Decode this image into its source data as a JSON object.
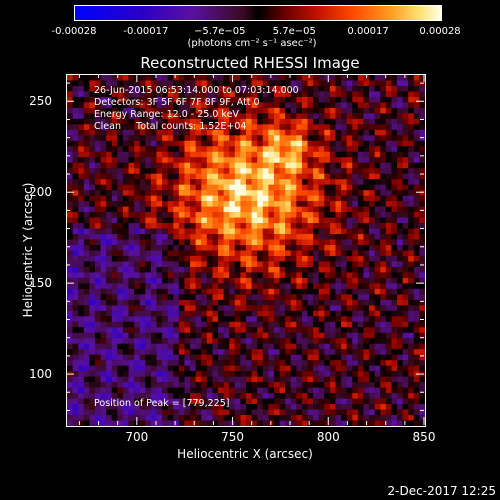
{
  "chart_data": {
    "type": "heatmap",
    "title": "Reconstructed RHESSI Image",
    "xlabel": "Heliocentric X (arcsec)",
    "ylabel": "Heliocentric Y (arcsec)",
    "xlim": [
      663,
      850
    ],
    "ylim": [
      72,
      265
    ],
    "xticks": [
      700,
      750,
      800,
      850
    ],
    "xtick_labels": [
      "700",
      "750",
      "800",
      "850"
    ],
    "yticks": [
      100,
      150,
      200,
      250
    ],
    "ytick_labels": [
      "100",
      "150",
      "200",
      "250"
    ],
    "colorbar": {
      "range": [
        -0.00028,
        0.00028
      ],
      "tick_values": [
        -0.00028,
        -0.00017,
        -5.7e-05,
        5.7e-05,
        0.00017,
        0.00028
      ],
      "tick_labels": [
        "-0.00028",
        "-0.00017",
        "−5.7e−05",
        "5.7e−05",
        "0.00017",
        "0.00028"
      ],
      "units": "(photons cm⁻² s⁻¹ asec⁻²)",
      "colormap": "blue-purple-black-red-orange-yellow-white"
    },
    "annotations": [
      "26-Jun-2015 06:53:14.000 to 07:03:14.000",
      "Detectors: 3F 5F 6F 7F 8F 9F, Att 0",
      "Energy Range: 12.0 - 25.0 keV",
      "Clean     Total counts: 1.52E+04"
    ],
    "peak_label": "Position of Peak = [779,225]",
    "peak_position": [
      779,
      225
    ],
    "date_stamp": "2-Dec-2017 12:25"
  }
}
